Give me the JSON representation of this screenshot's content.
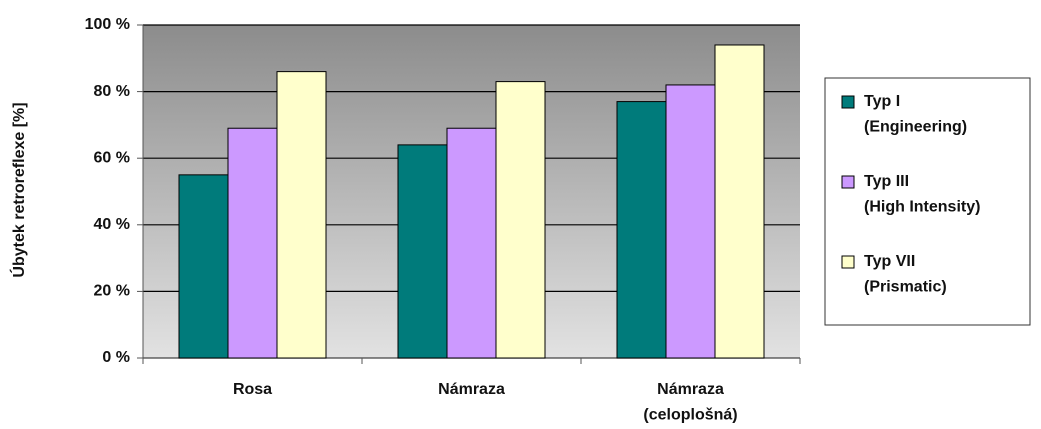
{
  "chart_data": {
    "type": "bar",
    "y_label": "Úbytek retroreflexe [%]",
    "categories": [
      "Rosa",
      "Námraza",
      "Námraza\n(celoplošná)"
    ],
    "series": [
      {
        "name": "Typ I\n(Engineering)",
        "color": "#007b7b",
        "values": [
          55,
          64,
          77
        ]
      },
      {
        "name": "Typ III\n(High Intensity)",
        "color": "#cc99ff",
        "values": [
          69,
          69,
          82
        ]
      },
      {
        "name": "Typ VII\n(Prismatic)",
        "color": "#ffffcc",
        "values": [
          86,
          83,
          94
        ]
      }
    ],
    "ylim": [
      0,
      100
    ],
    "yticks": [
      {
        "value": 0,
        "label": "0 %"
      },
      {
        "value": 20,
        "label": "20 %"
      },
      {
        "value": 40,
        "label": "40 %"
      },
      {
        "value": 60,
        "label": "60 %"
      },
      {
        "value": 80,
        "label": "80 %"
      },
      {
        "value": 100,
        "label": "100 %"
      }
    ],
    "grid": true
  }
}
